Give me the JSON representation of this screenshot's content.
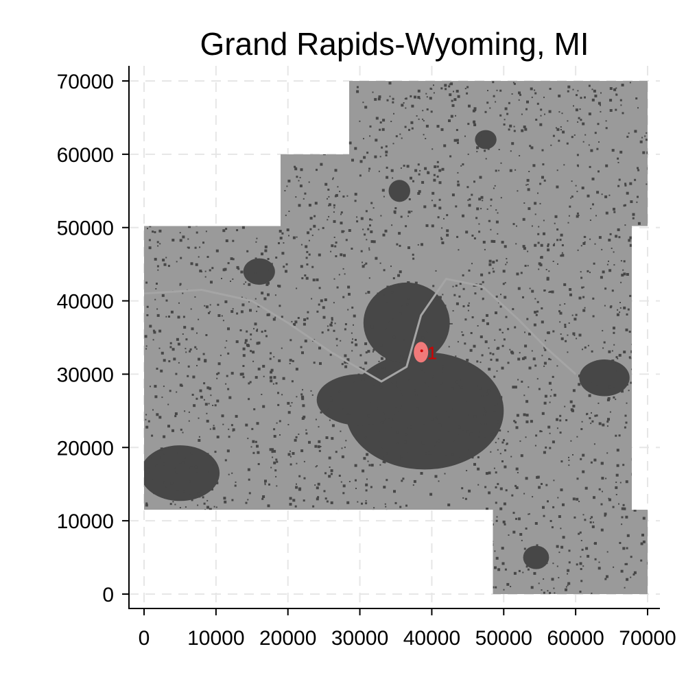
{
  "chart_data": {
    "type": "map",
    "title": "Grand Rapids-Wyoming, MI",
    "xlabel": "",
    "ylabel": "",
    "xlim": [
      0,
      70000
    ],
    "ylim": [
      0,
      70000
    ],
    "x_ticks": [
      0,
      10000,
      20000,
      30000,
      40000,
      50000,
      60000,
      70000
    ],
    "y_ticks": [
      0,
      10000,
      20000,
      30000,
      40000,
      50000,
      60000,
      70000
    ],
    "x_tick_labels": [
      "0",
      "10000",
      "20000",
      "30000",
      "40000",
      "50000",
      "60000",
      "70000"
    ],
    "y_tick_labels": [
      "0",
      "10000",
      "20000",
      "30000",
      "40000",
      "50000",
      "60000",
      "70000"
    ],
    "grid": true,
    "region_outline": [
      [
        0,
        11500
      ],
      [
        48500,
        11500
      ],
      [
        48500,
        0
      ],
      [
        70000,
        0
      ],
      [
        70000,
        11500
      ],
      [
        67800,
        11500
      ],
      [
        67800,
        50200
      ],
      [
        70000,
        50200
      ],
      [
        70000,
        70000
      ],
      [
        28500,
        70000
      ],
      [
        28500,
        60000
      ],
      [
        19000,
        60000
      ],
      [
        19000,
        50200
      ],
      [
        0,
        50200
      ]
    ],
    "dense_areas": [
      {
        "cx": 39000,
        "cy": 25000,
        "rx": 11000,
        "ry": 8000
      },
      {
        "cx": 36500,
        "cy": 37000,
        "rx": 6000,
        "ry": 5500
      },
      {
        "cx": 30000,
        "cy": 26500,
        "rx": 6000,
        "ry": 3500
      },
      {
        "cx": 5000,
        "cy": 16500,
        "rx": 5500,
        "ry": 3800
      },
      {
        "cx": 64000,
        "cy": 29500,
        "rx": 3500,
        "ry": 2500
      },
      {
        "cx": 35500,
        "cy": 55000,
        "rx": 1500,
        "ry": 1500
      },
      {
        "cx": 47500,
        "cy": 62000,
        "rx": 1500,
        "ry": 1300
      },
      {
        "cx": 16000,
        "cy": 44000,
        "rx": 2200,
        "ry": 1800
      },
      {
        "cx": 54500,
        "cy": 5000,
        "rx": 1800,
        "ry": 1600
      }
    ],
    "rivers": [
      [
        [
          0,
          41000
        ],
        [
          8000,
          41500
        ],
        [
          15000,
          40000
        ],
        [
          20000,
          37000
        ],
        [
          26000,
          33000
        ],
        [
          33000,
          29000
        ],
        [
          36500,
          31000
        ],
        [
          38500,
          38000
        ],
        [
          42000,
          43000
        ],
        [
          47000,
          42000
        ],
        [
          52000,
          37500
        ],
        [
          56000,
          33500
        ],
        [
          60000,
          30000
        ]
      ]
    ],
    "highlight": {
      "label": "1",
      "x": 38500,
      "y": 33000,
      "rx": 1000,
      "ry": 1400,
      "color": "#f07a7a"
    },
    "colors": {
      "background": "#ffffff",
      "region_fill": "#9a9a9a",
      "dense_fill": "#474747",
      "river": "#a5a5a5",
      "highlight": "#f07a7a",
      "label": "#d10000"
    }
  }
}
